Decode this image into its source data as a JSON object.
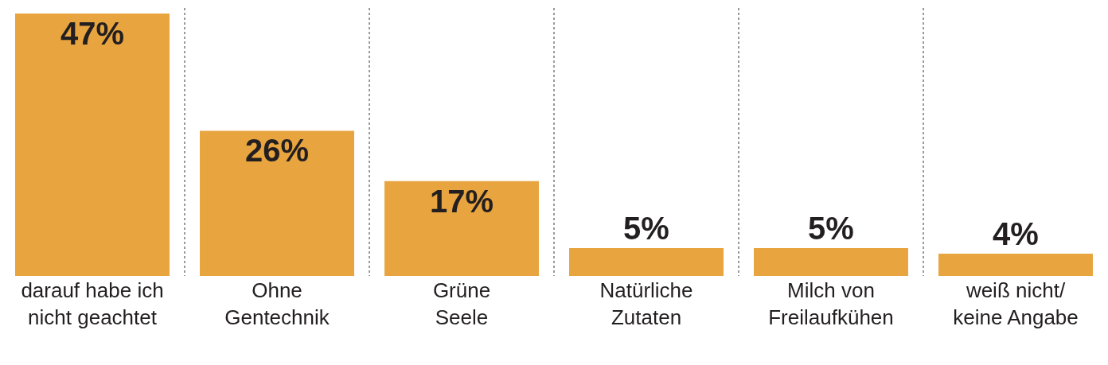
{
  "chart_data": {
    "type": "bar",
    "categories": [
      "darauf habe ich\nnicht geachtet",
      "Ohne\nGentechnik",
      "Grüne\nSeele",
      "Natürliche\nZutaten",
      "Milch von\nFreilaufkühen",
      "weiß nicht/\nkeine Angabe"
    ],
    "values": [
      47,
      26,
      17,
      5,
      5,
      4
    ],
    "value_labels": [
      "47%",
      "26%",
      "17%",
      "5%",
      "5%",
      "4%"
    ],
    "color": "#e8a53f",
    "ylim": [
      0,
      48
    ],
    "grid": "x",
    "tick_labels": "x"
  }
}
